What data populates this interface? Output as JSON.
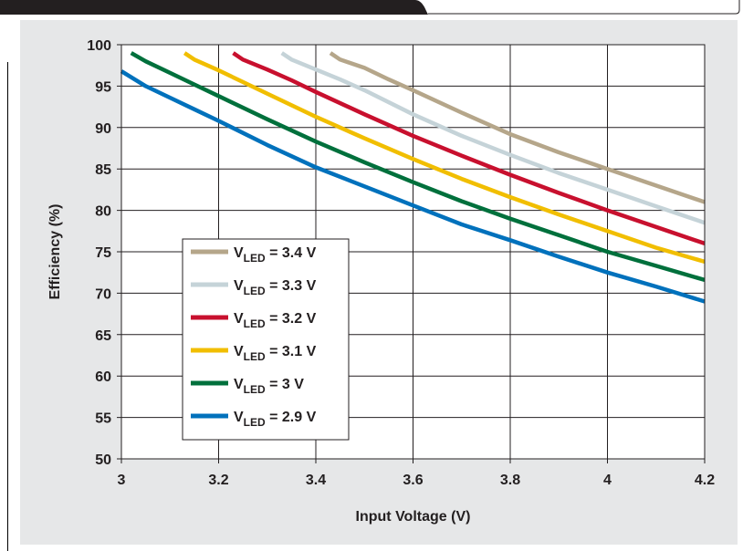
{
  "colors": {
    "panel": "#e6e7e8",
    "plot_bg": "#ffffff",
    "grid": "#231f20",
    "header_dark": "#231f20"
  },
  "chart_data": {
    "type": "line",
    "title": "",
    "xlabel": "Input Voltage (V)",
    "ylabel": "Efficiency (%)",
    "xlim": [
      3,
      4.2
    ],
    "ylim": [
      50,
      100
    ],
    "x_ticks": [
      "3",
      "3.2",
      "3.4",
      "3.6",
      "3.8",
      "4",
      "4.2"
    ],
    "y_ticks": [
      "50",
      "55",
      "60",
      "65",
      "70",
      "75",
      "80",
      "85",
      "90",
      "95",
      "100"
    ],
    "grid": true,
    "legend_position": "lower-left",
    "series": [
      {
        "name": "VLED = 3.4 V",
        "label_prefix": "V",
        "label_sub": "LED",
        "label_suffix": " = 3.4 V",
        "color": "#b5a68a",
        "x": [
          3.43,
          3.45,
          3.5,
          3.55,
          3.6,
          3.7,
          3.8,
          3.9,
          4.0,
          4.1,
          4.2
        ],
        "y": [
          99.0,
          98.2,
          97.2,
          95.8,
          94.5,
          91.8,
          89.2,
          87.0,
          85.0,
          83.0,
          81.0
        ]
      },
      {
        "name": "VLED = 3.3 V",
        "label_prefix": "V",
        "label_sub": "LED",
        "label_suffix": " = 3.3 V",
        "color": "#c5d3d8",
        "x": [
          3.33,
          3.35,
          3.4,
          3.45,
          3.5,
          3.6,
          3.7,
          3.8,
          3.9,
          4.0,
          4.1,
          4.2
        ],
        "y": [
          99.0,
          98.2,
          97.0,
          95.8,
          94.5,
          91.6,
          89.0,
          86.7,
          84.5,
          82.5,
          80.5,
          78.5
        ]
      },
      {
        "name": "VLED = 3.2 V",
        "label_prefix": "V",
        "label_sub": "LED",
        "label_suffix": " = 3.2 V",
        "color": "#c8102e",
        "x": [
          3.23,
          3.25,
          3.3,
          3.35,
          3.4,
          3.5,
          3.6,
          3.7,
          3.8,
          3.9,
          4.0,
          4.1,
          4.2
        ],
        "y": [
          99.0,
          98.2,
          97.0,
          95.7,
          94.3,
          91.6,
          89.0,
          86.6,
          84.3,
          82.1,
          80.0,
          78.0,
          76.0
        ]
      },
      {
        "name": "VLED = 3.1 V",
        "label_prefix": "V",
        "label_sub": "LED",
        "label_suffix": " = 3.1 V",
        "color": "#f1be00",
        "x": [
          3.13,
          3.15,
          3.2,
          3.25,
          3.3,
          3.4,
          3.5,
          3.6,
          3.7,
          3.8,
          3.9,
          4.0,
          4.1,
          4.2
        ],
        "y": [
          99.0,
          98.2,
          96.9,
          95.5,
          94.1,
          91.3,
          88.7,
          86.2,
          83.8,
          81.6,
          79.5,
          77.5,
          75.5,
          73.8
        ]
      },
      {
        "name": "VLED = 3 V",
        "label_prefix": "V",
        "label_sub": "LED",
        "label_suffix": " = 3 V",
        "color": "#00703c",
        "x": [
          3.02,
          3.05,
          3.1,
          3.15,
          3.2,
          3.3,
          3.4,
          3.5,
          3.6,
          3.7,
          3.8,
          3.9,
          4.0,
          4.1,
          4.2
        ],
        "y": [
          99.0,
          98.0,
          96.6,
          95.2,
          93.8,
          91.0,
          88.3,
          85.8,
          83.4,
          81.1,
          79.0,
          77.0,
          75.0,
          73.3,
          71.6
        ]
      },
      {
        "name": "VLED = 2.9 V",
        "label_prefix": "V",
        "label_sub": "LED",
        "label_suffix": " = 2.9 V",
        "color": "#0071bc",
        "x": [
          3.0,
          3.05,
          3.1,
          3.15,
          3.2,
          3.3,
          3.4,
          3.5,
          3.6,
          3.7,
          3.8,
          3.9,
          4.0,
          4.1,
          4.2
        ],
        "y": [
          96.8,
          95.0,
          93.6,
          92.2,
          90.8,
          87.9,
          85.2,
          82.9,
          80.6,
          78.3,
          76.4,
          74.4,
          72.5,
          70.8,
          69.0
        ]
      }
    ]
  }
}
